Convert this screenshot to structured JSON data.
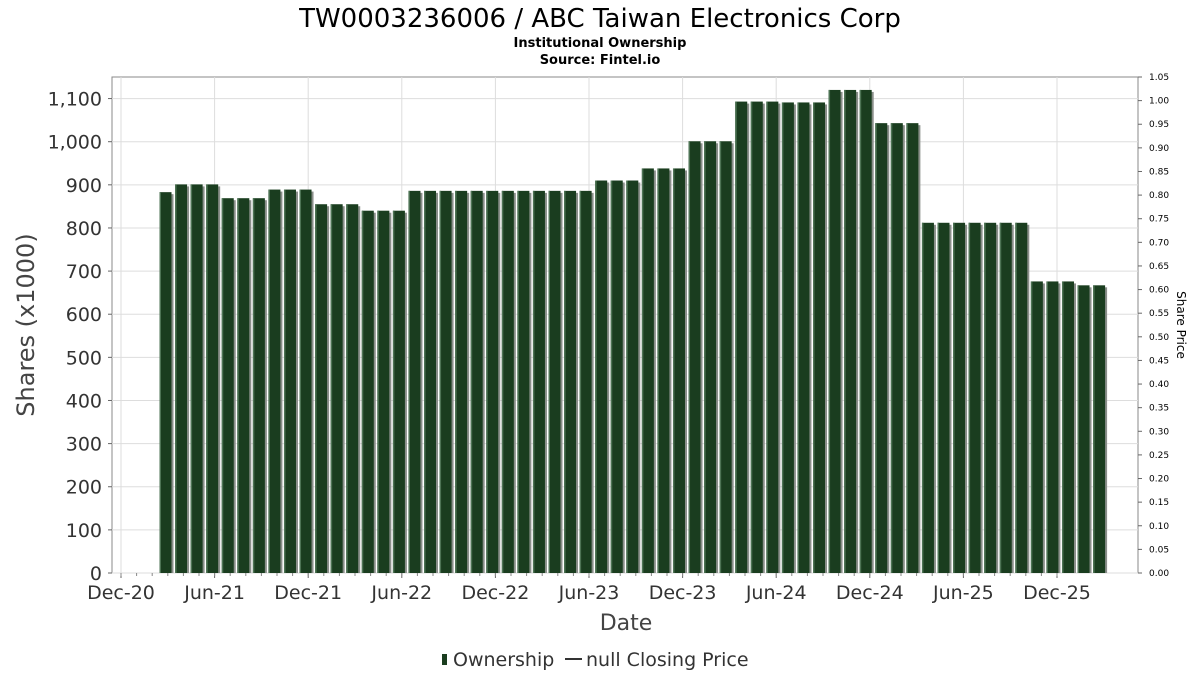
{
  "chart_data": {
    "type": "bar",
    "title": "TW0003236006 / ABC Taiwan Electronics Corp",
    "subtitle_1": "Institutional Ownership",
    "subtitle_2": "Source: Fintel.io",
    "xlabel": "Date",
    "ylabel": "Shares (x1000)",
    "y2label": "Share Price",
    "ylim": [
      0,
      1150
    ],
    "y2lim": [
      0,
      1.05
    ],
    "yticks": [
      "0",
      "100",
      "200",
      "300",
      "400",
      "500",
      "600",
      "700",
      "800",
      "900",
      "1,000",
      "1,100"
    ],
    "y2ticks": [
      "0.00",
      "0.05",
      "0.10",
      "0.15",
      "0.20",
      "0.25",
      "0.30",
      "0.35",
      "0.40",
      "0.45",
      "0.50",
      "0.55",
      "0.60",
      "0.65",
      "0.70",
      "0.75",
      "0.80",
      "0.85",
      "0.90",
      "0.95",
      "1.00",
      "1.05"
    ],
    "xticks": [
      "Dec-20",
      "Jun-21",
      "Dec-21",
      "Jun-22",
      "Dec-22",
      "Jun-23",
      "Dec-23",
      "Jun-24",
      "Dec-24",
      "Jun-25",
      "Dec-25"
    ],
    "grid": true,
    "legend_position": "bottom",
    "series": [
      {
        "name": "Ownership",
        "color": "#1a3d1f",
        "values": [
          883,
          901,
          901,
          901,
          869,
          869,
          869,
          889,
          889,
          889,
          855,
          855,
          855,
          840,
          840,
          840,
          886,
          886,
          886,
          886,
          886,
          886,
          886,
          886,
          886,
          886,
          886,
          886,
          910,
          910,
          910,
          938,
          938,
          938,
          1001,
          1001,
          1001,
          1093,
          1093,
          1093,
          1091,
          1091,
          1091,
          1120,
          1120,
          1120,
          1043,
          1043,
          1043,
          812,
          812,
          812,
          812,
          812,
          812,
          812,
          676,
          676,
          676,
          667,
          667
        ]
      }
    ],
    "legend_series_2": "null Closing Price"
  }
}
